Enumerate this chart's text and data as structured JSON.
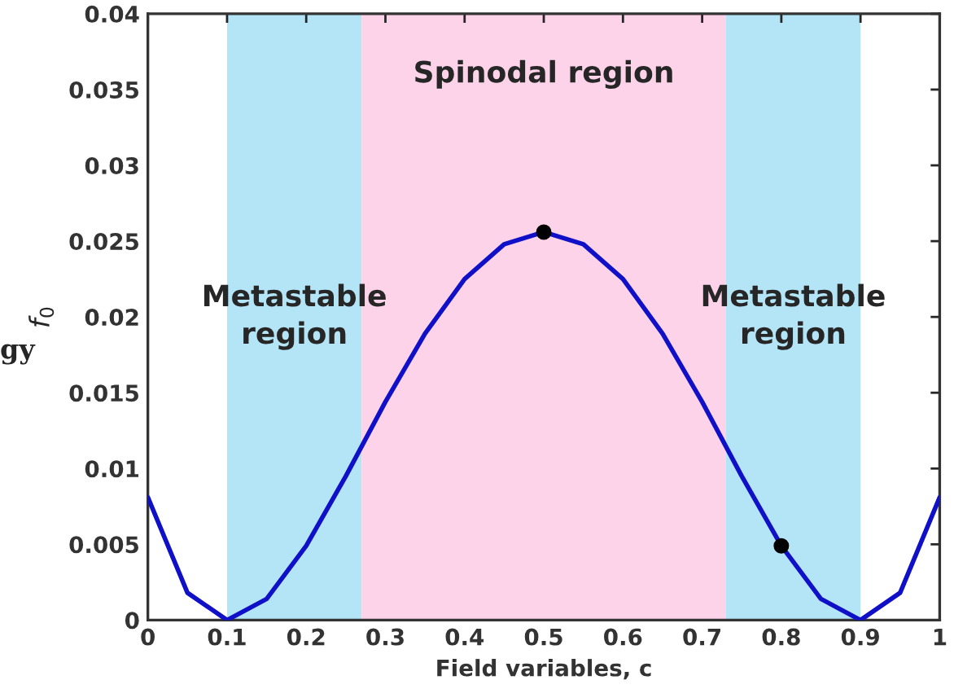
{
  "chart_data": {
    "type": "line",
    "xlabel": "Field variables, c",
    "ylabel": "f$_{0}$",
    "annotations": [
      "gy"
    ],
    "series": [
      {
        "color": "#1010c8",
        "x": [
          0,
          0.05,
          0.1,
          0.15,
          0.2,
          0.25,
          0.3,
          0.35,
          0.4,
          0.45,
          0.5,
          0.55,
          0.6,
          0.65,
          0.7,
          0.75,
          0.8,
          0.85,
          0.9,
          0.95,
          1
        ],
        "values": [
          0.0081,
          0.0018,
          0,
          0.0014,
          0.0049,
          0.0095,
          0.0144,
          0.0189,
          0.0225,
          0.0248,
          0.0256,
          0.0248,
          0.0225,
          0.0189,
          0.0144,
          0.0095,
          0.0049,
          0.0014,
          0,
          0.0018,
          0.0081
        ]
      },
      {
        "type": "scatter",
        "color": "#000000",
        "marker": "circle",
        "x": [
          0.5,
          0.8
        ],
        "values": [
          0.0256,
          0.0049
        ]
      }
    ],
    "bands": [
      {
        "axis": "x",
        "from": 0.1,
        "to": 0.27,
        "label": "Metastable\nregion",
        "color": "#b3e5f6"
      },
      {
        "axis": "x",
        "from": 0.27,
        "to": 0.73,
        "label": "Spinodal region",
        "color": "#fcd3e9"
      },
      {
        "axis": "x",
        "from": 0.73,
        "to": 0.9,
        "label": "Metastable\nregion",
        "color": "#b3e5f6"
      }
    ],
    "xlim": [
      0,
      1
    ],
    "ylim": [
      0,
      0.04
    ],
    "xticks": [
      0,
      0.1,
      0.2,
      0.3,
      0.4,
      0.5,
      0.6,
      0.7,
      0.8,
      0.9,
      1
    ],
    "yticks": [
      0,
      0.005,
      0.01,
      0.015,
      0.02,
      0.025,
      0.03,
      0.035,
      0.04
    ],
    "grid": false,
    "legend": false,
    "marker": "none",
    "line_style": "solid"
  }
}
